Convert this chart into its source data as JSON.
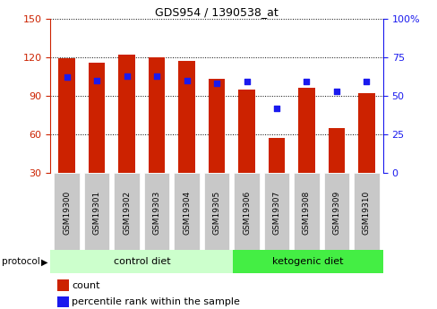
{
  "title": "GDS954 / 1390538_at",
  "samples": [
    "GSM19300",
    "GSM19301",
    "GSM19302",
    "GSM19303",
    "GSM19304",
    "GSM19305",
    "GSM19306",
    "GSM19307",
    "GSM19308",
    "GSM19309",
    "GSM19310"
  ],
  "count_values": [
    119,
    116,
    122,
    120,
    117,
    103,
    95,
    57,
    96,
    65,
    92
  ],
  "percentile_values": [
    62,
    60,
    63,
    63,
    60,
    58,
    59,
    42,
    59,
    53,
    59
  ],
  "ylim_left": [
    30,
    150
  ],
  "ylim_right": [
    0,
    100
  ],
  "yticks_left": [
    30,
    60,
    90,
    120,
    150
  ],
  "yticks_right": [
    0,
    25,
    50,
    75,
    100
  ],
  "ytick_labels_right": [
    "0",
    "25",
    "50",
    "75",
    "100%"
  ],
  "bar_color": "#cc2200",
  "dot_color": "#1a1aee",
  "bg_color": "#ffffff",
  "plot_bg": "#ffffff",
  "control_diet_label": "control diet",
  "ketogenic_diet_label": "ketogenic diet",
  "protocol_label": "protocol",
  "legend_count": "count",
  "legend_percentile": "percentile rank within the sample",
  "tick_color_left": "#cc2200",
  "tick_color_right": "#1a1aee",
  "bar_bottom": 30,
  "dot_size": 18,
  "n_control": 6,
  "n_ketogenic": 5,
  "label_box_color": "#c8c8c8",
  "control_light": "#ccffcc",
  "ketogenic_green": "#44ee44"
}
